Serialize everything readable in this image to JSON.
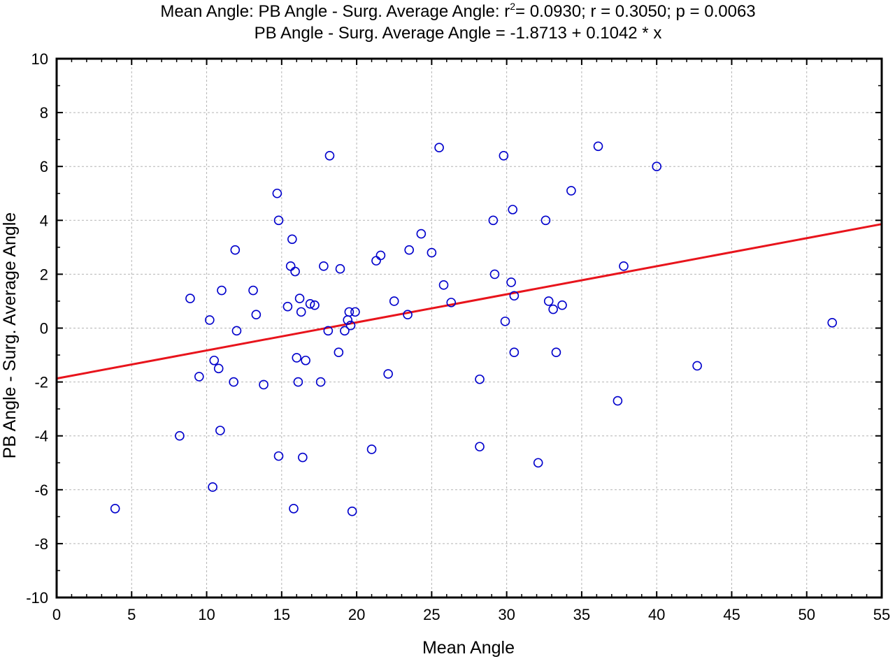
{
  "chart_data": {
    "type": "scatter",
    "title_line1_part1": "Mean Angle: PB Angle - Surg. Average Angle: r",
    "title_line1_sup": "2",
    "title_line1_part2": "= 0.0930; r = 0.3050; p = 0.0063",
    "title_line2": "PB Angle - Surg. Average Angle = -1.8713 + 0.1042 * x",
    "xlabel": "Mean Angle",
    "ylabel": "PB Angle - Surg. Average Angle",
    "xlim": [
      0,
      55
    ],
    "ylim": [
      -10,
      10
    ],
    "x_ticks": [
      0,
      5,
      10,
      15,
      20,
      25,
      30,
      35,
      40,
      45,
      50,
      55
    ],
    "y_ticks": [
      -10,
      -8,
      -6,
      -4,
      -2,
      0,
      2,
      4,
      6,
      8,
      10
    ],
    "grid": true,
    "regression": {
      "intercept": -1.8713,
      "slope": 0.1042,
      "color": "#e8141c"
    },
    "marker_color": "#0000cc",
    "points": [
      [
        3.9,
        -6.7
      ],
      [
        8.2,
        -4.0
      ],
      [
        8.9,
        1.1
      ],
      [
        9.5,
        -1.8
      ],
      [
        10.2,
        0.3
      ],
      [
        10.4,
        -5.9
      ],
      [
        10.5,
        -1.2
      ],
      [
        10.8,
        -1.5
      ],
      [
        10.9,
        -3.8
      ],
      [
        11.0,
        1.4
      ],
      [
        11.8,
        -2.0
      ],
      [
        11.9,
        2.9
      ],
      [
        12.0,
        -0.1
      ],
      [
        13.1,
        1.4
      ],
      [
        13.3,
        0.5
      ],
      [
        13.8,
        -2.1
      ],
      [
        14.7,
        5.0
      ],
      [
        14.8,
        4.0
      ],
      [
        14.8,
        -4.75
      ],
      [
        15.4,
        0.8
      ],
      [
        15.6,
        2.3
      ],
      [
        15.7,
        3.3
      ],
      [
        15.8,
        -6.7
      ],
      [
        15.9,
        2.1
      ],
      [
        16.0,
        -1.1
      ],
      [
        16.1,
        -2.0
      ],
      [
        16.2,
        1.1
      ],
      [
        16.3,
        0.6
      ],
      [
        16.4,
        -4.8
      ],
      [
        16.6,
        -1.2
      ],
      [
        16.9,
        0.9
      ],
      [
        17.2,
        0.85
      ],
      [
        17.6,
        -2.0
      ],
      [
        17.8,
        2.3
      ],
      [
        18.1,
        -0.1
      ],
      [
        18.2,
        6.4
      ],
      [
        18.8,
        -0.9
      ],
      [
        18.9,
        2.2
      ],
      [
        19.2,
        -0.1
      ],
      [
        19.4,
        0.3
      ],
      [
        19.5,
        0.6
      ],
      [
        19.6,
        0.1
      ],
      [
        19.7,
        -6.8
      ],
      [
        19.9,
        0.6
      ],
      [
        21.0,
        -4.5
      ],
      [
        21.3,
        2.5
      ],
      [
        21.6,
        2.7
      ],
      [
        22.1,
        -1.7
      ],
      [
        22.5,
        1.0
      ],
      [
        23.4,
        0.5
      ],
      [
        23.5,
        2.9
      ],
      [
        24.3,
        3.5
      ],
      [
        25.0,
        2.8
      ],
      [
        25.5,
        6.7
      ],
      [
        25.8,
        1.6
      ],
      [
        26.3,
        0.95
      ],
      [
        28.2,
        -1.9
      ],
      [
        28.2,
        -4.4
      ],
      [
        29.1,
        4.0
      ],
      [
        29.2,
        2.0
      ],
      [
        29.8,
        6.4
      ],
      [
        29.9,
        0.25
      ],
      [
        30.3,
        1.7
      ],
      [
        30.4,
        4.4
      ],
      [
        30.5,
        1.2
      ],
      [
        30.5,
        -0.9
      ],
      [
        32.1,
        -5.0
      ],
      [
        32.6,
        4.0
      ],
      [
        32.8,
        1.0
      ],
      [
        33.1,
        0.7
      ],
      [
        33.3,
        -0.9
      ],
      [
        33.7,
        0.85
      ],
      [
        34.3,
        5.1
      ],
      [
        36.1,
        6.75
      ],
      [
        37.4,
        -2.7
      ],
      [
        37.8,
        2.3
      ],
      [
        40.0,
        6.0
      ],
      [
        42.7,
        -1.4
      ],
      [
        51.7,
        0.2
      ]
    ]
  }
}
